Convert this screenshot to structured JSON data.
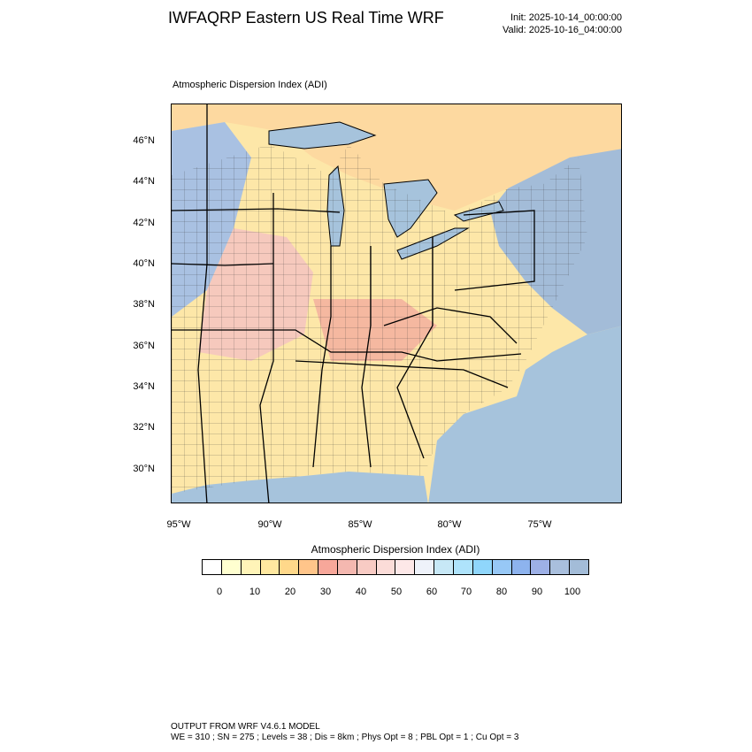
{
  "header": {
    "title": "IWFAQRP Eastern US Real Time WRF",
    "init": "Init: 2025-10-14_00:00:00",
    "valid": "Valid: 2025-10-16_04:00:00"
  },
  "plot": {
    "title": "Atmospheric Dispersion Index   (ADI)",
    "lat_labels": [
      "46°N",
      "44°N",
      "42°N",
      "40°N",
      "38°N",
      "36°N",
      "34°N",
      "32°N",
      "30°N"
    ],
    "lon_labels": [
      "95°W",
      "90°W",
      "85°W",
      "80°W",
      "75°W"
    ]
  },
  "colorbar": {
    "title": "Atmospheric Dispersion Index  (ADI)",
    "labels": [
      "0",
      "10",
      "20",
      "30",
      "40",
      "50",
      "60",
      "70",
      "80",
      "90",
      "100"
    ],
    "colors": [
      "#ffffff",
      "#ffffd0",
      "#fff4b8",
      "#ffe8a0",
      "#ffd88a",
      "#ffc58a",
      "#f7a79a",
      "#f4b8b0",
      "#f8cbc4",
      "#fbdcd8",
      "#fde8e8",
      "#eef2fa",
      "#c7e8f6",
      "#aee3fb",
      "#8fd6fb",
      "#97c8f6",
      "#8db3ee",
      "#9db0e6",
      "#a9bfdd",
      "#a3bcd8"
    ]
  },
  "map": {
    "ocean_color": "#a6c3dc",
    "land_color": "#fde7a8",
    "lake_color": "#a6c3dc"
  },
  "footer": {
    "line1": "OUTPUT FROM WRF V4.6.1 MODEL",
    "line2": "WE = 310 ; SN = 275 ; Levels = 38 ; Dis = 8km ; Phys Opt = 8 ; PBL Opt = 1 ; Cu Opt = 3"
  }
}
